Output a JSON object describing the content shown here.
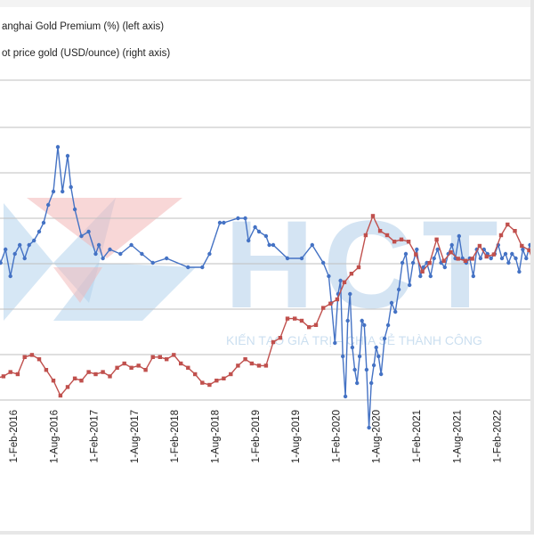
{
  "chart_data": {
    "type": "line",
    "x_tick_labels": [
      "1-Feb-2016",
      "1-Aug-2016",
      "1-Feb-2017",
      "1-Aug-2017",
      "1-Feb-2018",
      "1-Aug-2018",
      "1-Feb-2019",
      "1-Aug-2019",
      "1-Feb-2020",
      "1-Aug-2020",
      "1-Feb-2021",
      "1-Aug-2021",
      "1-Feb-2022"
    ],
    "legend": [
      {
        "label": "anghai Gold Premium (%) (left axis)",
        "color": "#4472c4"
      },
      {
        "label": "ot price gold (USD/ounce) (right axis)",
        "color": "#c0504d"
      }
    ],
    "grid": true,
    "series": [
      {
        "name": "anghai Gold Premium (%) (left axis)",
        "color": "#4472c4",
        "x": [
          "2016-01-01",
          "2016-01-15",
          "2016-02-05",
          "2016-03-01",
          "2016-03-20",
          "2016-04-10",
          "2016-05-01",
          "2016-05-20",
          "2016-06-10",
          "2016-07-01",
          "2016-07-20",
          "2016-08-10",
          "2016-09-01",
          "2016-09-20",
          "2016-10-10",
          "2016-11-01",
          "2016-11-20",
          "2016-12-10",
          "2017-01-01",
          "2017-01-15",
          "2017-02-01",
          "2017-03-01",
          "2017-04-01",
          "2017-05-01",
          "2017-05-15",
          "2017-06-01",
          "2017-07-01",
          "2017-08-15",
          "2017-10-01",
          "2017-11-15",
          "2018-01-01",
          "2018-03-01",
          "2018-06-01",
          "2018-08-01",
          "2018-09-01",
          "2018-10-15",
          "2018-11-01",
          "2019-01-01",
          "2019-02-01",
          "2019-02-15",
          "2019-03-15",
          "2019-04-01",
          "2019-05-01",
          "2019-05-15",
          "2019-06-01",
          "2019-08-01",
          "2019-10-01",
          "2019-11-15",
          "2020-01-01",
          "2020-01-25",
          "2020-02-05",
          "2020-02-20",
          "2020-03-05",
          "2020-03-15",
          "2020-03-25",
          "2020-04-05",
          "2020-04-15",
          "2020-04-25",
          "2020-05-05",
          "2020-05-15",
          "2020-05-25",
          "2020-06-05",
          "2020-06-15",
          "2020-06-25",
          "2020-07-05",
          "2020-07-15",
          "2020-07-25",
          "2020-08-05",
          "2020-08-15",
          "2020-08-25",
          "2020-09-05",
          "2020-09-20",
          "2020-10-05",
          "2020-10-20",
          "2020-11-05",
          "2020-11-20",
          "2020-12-05",
          "2020-12-20",
          "2021-01-05",
          "2021-01-20",
          "2021-02-05",
          "2021-02-20",
          "2021-03-05",
          "2021-03-20",
          "2021-04-05",
          "2021-04-20",
          "2021-05-05",
          "2021-05-20",
          "2021-06-05",
          "2021-06-20",
          "2021-07-05",
          "2021-07-20",
          "2021-08-05",
          "2021-08-20",
          "2021-09-05",
          "2021-09-20",
          "2021-10-05",
          "2021-10-20",
          "2021-11-05",
          "2021-11-20",
          "2021-12-05",
          "2021-12-20",
          "2022-01-05",
          "2022-01-20",
          "2022-02-05",
          "2022-02-20",
          "2022-03-05",
          "2022-03-20",
          "2022-04-05",
          "2022-04-20",
          "2022-05-05",
          "2022-05-20",
          "2022-06-05",
          "2022-06-20"
        ],
        "y": [
          0.2,
          0.6,
          0.2,
          0.3,
          0.0,
          0.3,
          -0.3,
          0.2,
          0.4,
          0.1,
          0.4,
          0.5,
          0.7,
          0.9,
          1.3,
          1.6,
          2.6,
          1.6,
          2.4,
          1.7,
          1.2,
          0.6,
          0.7,
          0.2,
          0.4,
          0.1,
          0.3,
          0.2,
          0.4,
          0.2,
          0.0,
          0.1,
          -0.1,
          -0.1,
          0.2,
          0.9,
          0.9,
          1.0,
          1.0,
          0.5,
          0.8,
          0.7,
          0.6,
          0.4,
          0.4,
          0.1,
          0.1,
          0.4,
          0.0,
          -0.3,
          -0.9,
          -1.8,
          -0.7,
          -0.4,
          -2.1,
          -3.0,
          -1.3,
          -0.7,
          -1.9,
          -2.4,
          -2.7,
          -2.1,
          -1.3,
          -1.4,
          -2.4,
          -3.7,
          -2.7,
          -2.3,
          -1.9,
          -2.1,
          -2.5,
          -1.7,
          -1.4,
          -0.9,
          -1.1,
          -0.6,
          0.0,
          0.2,
          -0.5,
          0.0,
          0.3,
          -0.3,
          -0.1,
          0.0,
          -0.3,
          0.1,
          0.3,
          0.0,
          -0.1,
          0.2,
          0.4,
          0.1,
          0.6,
          0.1,
          0.0,
          0.1,
          -0.3,
          0.3,
          0.1,
          0.3,
          0.2,
          0.1,
          0.2,
          0.4,
          0.1,
          0.2,
          0.0,
          0.2,
          0.1,
          -0.2,
          0.3,
          0.1,
          0.4,
          0.2
        ]
      },
      {
        "name": "ot price gold (USD/ounce) (right axis)",
        "color": "#c0504d",
        "x": [
          "2016-01-01",
          "2016-02-01",
          "2016-03-01",
          "2016-04-01",
          "2016-05-01",
          "2016-06-01",
          "2016-07-01",
          "2016-08-01",
          "2016-09-01",
          "2016-10-01",
          "2016-11-01",
          "2016-12-01",
          "2017-01-01",
          "2017-02-01",
          "2017-03-01",
          "2017-04-01",
          "2017-05-01",
          "2017-06-01",
          "2017-07-01",
          "2017-08-01",
          "2017-09-01",
          "2017-10-01",
          "2017-11-01",
          "2017-12-01",
          "2018-01-01",
          "2018-02-01",
          "2018-03-01",
          "2018-04-01",
          "2018-05-01",
          "2018-06-01",
          "2018-07-01",
          "2018-08-01",
          "2018-09-01",
          "2018-10-01",
          "2018-11-01",
          "2018-12-01",
          "2019-01-01",
          "2019-02-01",
          "2019-03-01",
          "2019-04-01",
          "2019-05-01",
          "2019-06-01",
          "2019-07-01",
          "2019-08-01",
          "2019-09-01",
          "2019-10-01",
          "2019-11-01",
          "2019-12-01",
          "2020-01-01",
          "2020-02-01",
          "2020-03-01",
          "2020-04-01",
          "2020-05-01",
          "2020-06-01",
          "2020-07-01",
          "2020-08-01",
          "2020-09-01",
          "2020-10-01",
          "2020-11-01",
          "2020-12-01",
          "2021-01-01",
          "2021-02-01",
          "2021-03-01",
          "2021-04-01",
          "2021-05-01",
          "2021-06-01",
          "2021-07-01",
          "2021-08-01",
          "2021-09-01",
          "2021-10-01",
          "2021-11-01",
          "2021-12-01",
          "2022-01-01",
          "2022-02-01",
          "2022-03-01",
          "2022-04-01",
          "2022-05-01",
          "2022-06-01",
          "2022-07-01"
        ],
        "y": [
          1100,
          1120,
          1230,
          1240,
          1260,
          1250,
          1330,
          1340,
          1320,
          1270,
          1220,
          1150,
          1190,
          1230,
          1220,
          1260,
          1250,
          1260,
          1240,
          1280,
          1300,
          1280,
          1290,
          1270,
          1330,
          1330,
          1320,
          1340,
          1300,
          1280,
          1250,
          1210,
          1200,
          1220,
          1230,
          1250,
          1290,
          1320,
          1300,
          1290,
          1290,
          1400,
          1420,
          1510,
          1510,
          1500,
          1470,
          1480,
          1560,
          1580,
          1600,
          1680,
          1720,
          1750,
          1900,
          1990,
          1920,
          1900,
          1870,
          1880,
          1870,
          1810,
          1730,
          1770,
          1880,
          1780,
          1820,
          1790,
          1780,
          1790,
          1850,
          1800,
          1810,
          1900,
          1950,
          1920,
          1850,
          1830,
          1740
        ]
      }
    ],
    "watermark": {
      "logo_text": "HCT",
      "tagline": "KIẾN TẠO GIÁ TRỊ – CHIA SẺ THÀNH CÔNG"
    }
  }
}
